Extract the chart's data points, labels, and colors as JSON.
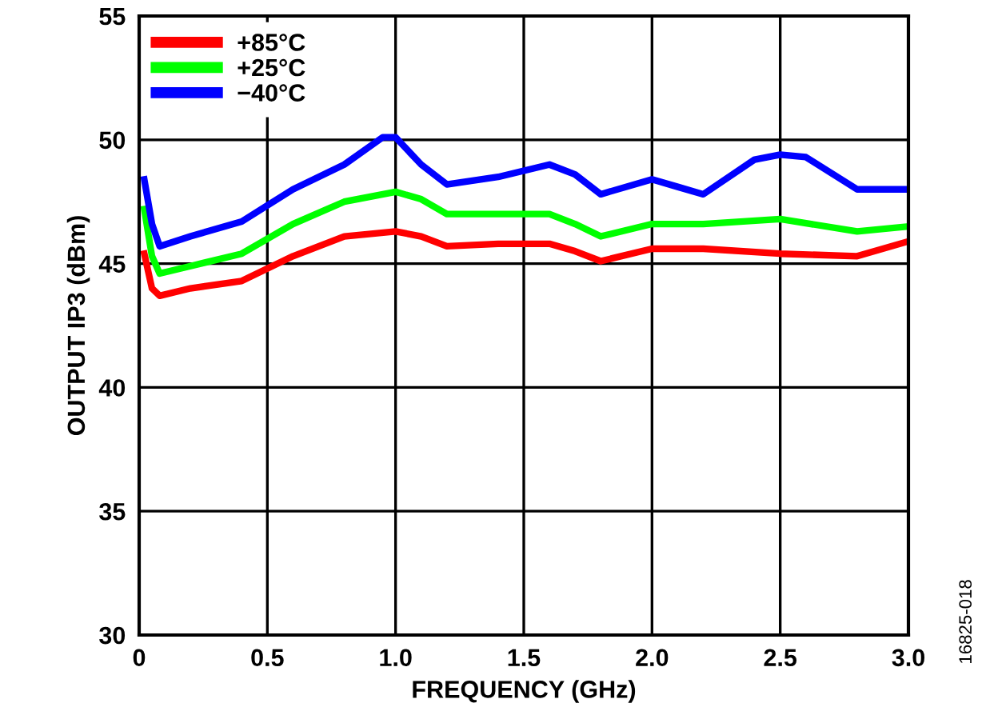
{
  "chart_data": {
    "type": "line",
    "xlabel": "FREQUENCY (GHz)",
    "ylabel": "OUTPUT IP3 (dBm)",
    "xlim": [
      0,
      3.0
    ],
    "ylim": [
      30,
      55
    ],
    "xticks": [
      {
        "value": 0,
        "label": "0"
      },
      0.5,
      {
        "value": 1,
        "label": "1.0"
      },
      1.5,
      {
        "value": 2,
        "label": "2.0"
      },
      2.5,
      {
        "value": 3,
        "label": "3.0"
      }
    ],
    "yticks": [
      30,
      35,
      40,
      45,
      50,
      55
    ],
    "grid": true,
    "legend": "top left",
    "marker": "none",
    "line_style": "solid",
    "annotations": [
      "16825-018"
    ],
    "series": [
      {
        "name": "+85°C",
        "color": "#ff0000",
        "x": [
          0.02,
          0.05,
          0.08,
          0.2,
          0.4,
          0.6,
          0.8,
          1.0,
          1.1,
          1.2,
          1.4,
          1.6,
          1.7,
          1.8,
          2.0,
          2.2,
          2.5,
          2.8,
          3.0
        ],
        "values": [
          45.4,
          44.0,
          43.7,
          44.0,
          44.3,
          45.3,
          46.1,
          46.3,
          46.1,
          45.7,
          45.8,
          45.8,
          45.5,
          45.1,
          45.6,
          45.6,
          45.4,
          45.3,
          45.9
        ]
      },
      {
        "name": "+25°C",
        "color": "#00ff00",
        "x": [
          0.02,
          0.05,
          0.08,
          0.2,
          0.4,
          0.6,
          0.8,
          1.0,
          1.1,
          1.2,
          1.4,
          1.6,
          1.7,
          1.8,
          2.0,
          2.2,
          2.5,
          2.8,
          3.0
        ],
        "values": [
          47.2,
          45.3,
          44.6,
          44.9,
          45.4,
          46.6,
          47.5,
          47.9,
          47.6,
          47.0,
          47.0,
          47.0,
          46.6,
          46.1,
          46.6,
          46.6,
          46.8,
          46.3,
          46.5
        ]
      },
      {
        "name": "−40°C",
        "color": "#0000ff",
        "x": [
          0.02,
          0.05,
          0.08,
          0.2,
          0.4,
          0.6,
          0.8,
          0.95,
          1.0,
          1.1,
          1.2,
          1.4,
          1.6,
          1.7,
          1.8,
          2.0,
          2.1,
          2.2,
          2.4,
          2.5,
          2.6,
          2.8,
          3.0
        ],
        "values": [
          48.4,
          46.6,
          45.7,
          46.1,
          46.7,
          48.0,
          49.0,
          50.1,
          50.1,
          49.0,
          48.2,
          48.5,
          49.0,
          48.6,
          47.8,
          48.4,
          48.1,
          47.8,
          49.2,
          49.4,
          49.3,
          48.0,
          48.0
        ]
      }
    ]
  }
}
